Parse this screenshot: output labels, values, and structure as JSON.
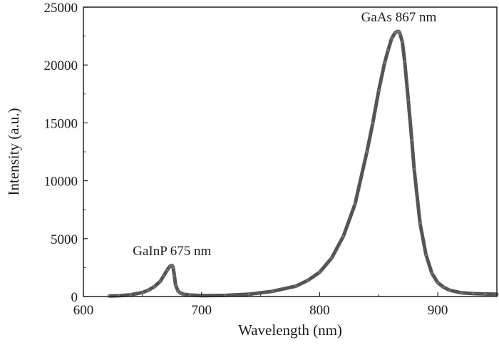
{
  "chart_data": {
    "type": "line",
    "title": "",
    "xlabel": "Wavelength (nm)",
    "ylabel": "Intensity (a.u.)",
    "xlim": [
      600,
      950
    ],
    "ylim": [
      0,
      25000
    ],
    "x_ticks": [
      600,
      700,
      800,
      900
    ],
    "y_ticks": [
      0,
      5000,
      10000,
      15000,
      20000,
      25000
    ],
    "x_tick_labels": [
      "600",
      "700",
      "800",
      "900"
    ],
    "y_tick_labels": [
      "0",
      "5000",
      "10000",
      "15000",
      "20000",
      "25000"
    ],
    "grid": false,
    "legend": "none",
    "line_color": "#555555",
    "annotations": [
      {
        "text": "GaInP 675 nm",
        "x": 675,
        "y": 2700
      },
      {
        "text": "GaAs 867 nm",
        "x": 867,
        "y": 22900
      }
    ],
    "series": [
      {
        "x": [
          622,
          630,
          640,
          650,
          655,
          660,
          665,
          668,
          671,
          673,
          675,
          676,
          677,
          678,
          680,
          682,
          685,
          690,
          700,
          720,
          740,
          760,
          780,
          790,
          800,
          810,
          820,
          830,
          840,
          845,
          850,
          855,
          858,
          861,
          864,
          866,
          867,
          868,
          870,
          872,
          875,
          878,
          880,
          885,
          890,
          895,
          900,
          905,
          910,
          920,
          930,
          940,
          950
        ],
        "y": [
          50,
          70,
          150,
          350,
          550,
          850,
          1300,
          1800,
          2300,
          2600,
          2700,
          2500,
          1800,
          1000,
          500,
          300,
          200,
          130,
          80,
          100,
          200,
          450,
          900,
          1400,
          2100,
          3300,
          5200,
          8000,
          12500,
          15000,
          17800,
          20200,
          21300,
          22300,
          22800,
          22900,
          22900,
          22700,
          22000,
          20300,
          17000,
          13500,
          11000,
          6300,
          3600,
          2000,
          1200,
          800,
          550,
          320,
          250,
          220,
          200
        ]
      }
    ]
  }
}
